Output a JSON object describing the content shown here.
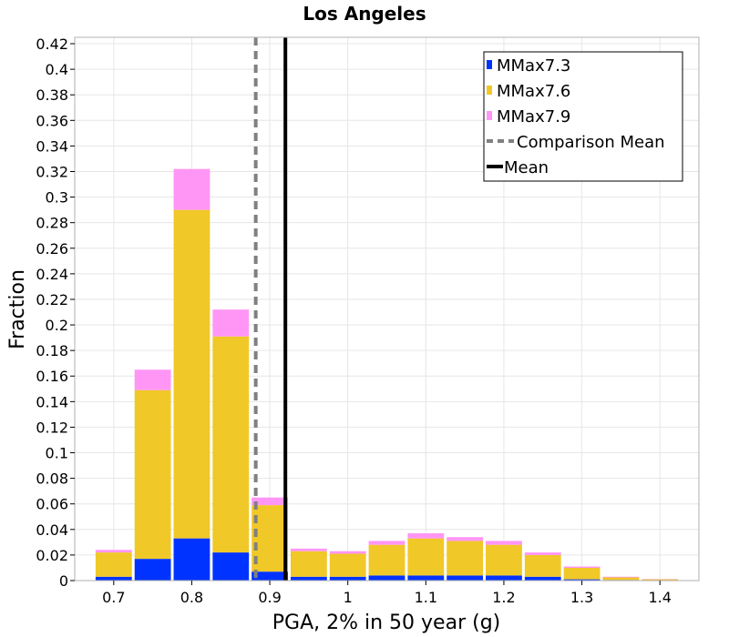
{
  "chart_data": {
    "type": "bar",
    "stacked": true,
    "title": "Los Angeles",
    "xlabel": "PGA, 2% in 50 year (g)",
    "ylabel": "Fraction",
    "xlim": [
      0.65,
      1.45
    ],
    "ylim": [
      0,
      0.425
    ],
    "grid": true,
    "legend_position": "top-right",
    "bin_width": 0.05,
    "x": [
      0.7,
      0.75,
      0.8,
      0.85,
      0.9,
      0.95,
      1.0,
      1.05,
      1.1,
      1.15,
      1.2,
      1.25,
      1.3,
      1.35,
      1.4
    ],
    "series": [
      {
        "name": "MMax7.3",
        "color": "#0033ff",
        "values": [
          0.003,
          0.017,
          0.033,
          0.022,
          0.007,
          0.003,
          0.003,
          0.004,
          0.004,
          0.004,
          0.004,
          0.003,
          0.001,
          0.0005,
          0.0002
        ]
      },
      {
        "name": "MMax7.6",
        "color": "#f0c828",
        "values": [
          0.019,
          0.132,
          0.257,
          0.169,
          0.052,
          0.02,
          0.018,
          0.024,
          0.029,
          0.027,
          0.024,
          0.017,
          0.009,
          0.002,
          0.0008
        ]
      },
      {
        "name": "MMax7.9",
        "color": "#ff96f5",
        "values": [
          0.002,
          0.016,
          0.032,
          0.021,
          0.006,
          0.002,
          0.002,
          0.003,
          0.004,
          0.003,
          0.003,
          0.002,
          0.001,
          0.0005,
          0.0002
        ]
      }
    ],
    "lines": [
      {
        "name": "Comparison Mean",
        "x": 0.882,
        "style": "dashed",
        "color": "#808080"
      },
      {
        "name": "Mean",
        "x": 0.92,
        "style": "solid",
        "color": "#000000"
      }
    ],
    "xticks": [
      "0.7",
      "0.8",
      "0.9",
      "1",
      "1.1",
      "1.2",
      "1.3",
      "1.4"
    ],
    "yticks": [
      "0",
      "0.02",
      "0.04",
      "0.06",
      "0.08",
      "0.1",
      "0.12",
      "0.14",
      "0.16",
      "0.18",
      "0.2",
      "0.22",
      "0.24",
      "0.26",
      "0.28",
      "0.3",
      "0.32",
      "0.34",
      "0.36",
      "0.38",
      "0.4",
      "0.42"
    ]
  }
}
